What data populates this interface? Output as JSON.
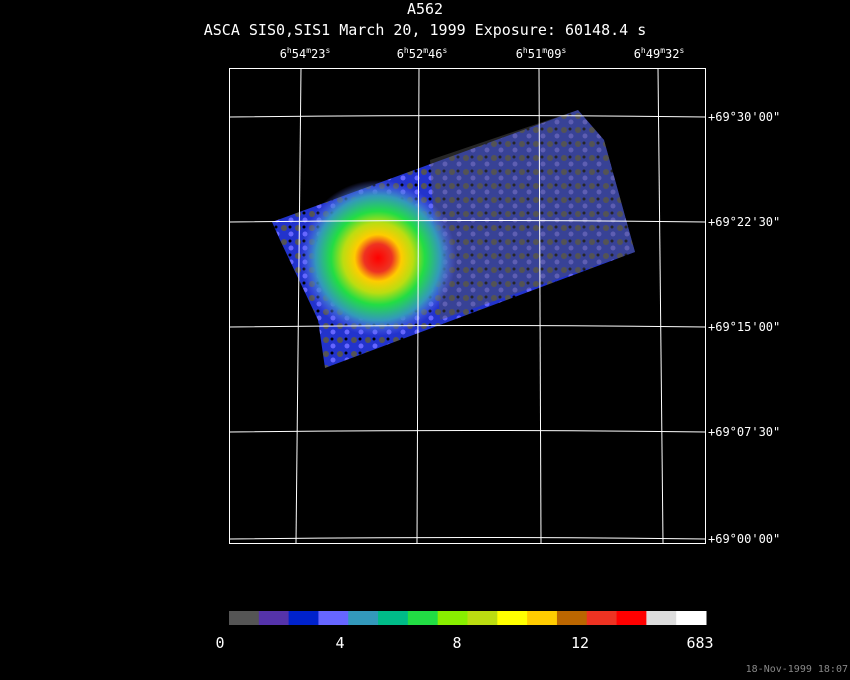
{
  "header": {
    "title": "A562",
    "subtitle": "ASCA SIS0,SIS1 March 20, 1999 Exposure: 60148.4 s"
  },
  "ra_labels": [
    [
      "6",
      "h",
      "54",
      "m",
      "23",
      "s"
    ],
    [
      "6",
      "h",
      "52",
      "m",
      "46",
      "s"
    ],
    [
      "6",
      "h",
      "51",
      "m",
      "09",
      "s"
    ],
    [
      "6",
      "h",
      "49",
      "m",
      "32",
      "s"
    ]
  ],
  "dec_labels": [
    "+69°30'00\"",
    "+69°22'30\"",
    "+69°15'00\"",
    "+69°07'30\"",
    "+69°00'00\""
  ],
  "colorbar": {
    "labels": [
      "0",
      "4",
      "8",
      "12",
      "683"
    ],
    "colors": [
      "#555555",
      "#5533aa",
      "#0022cc",
      "#6666ff",
      "#3399bb",
      "#00bb88",
      "#22dd44",
      "#88ee00",
      "#bbdd11",
      "#ffff00",
      "#ffcc00",
      "#bb6600",
      "#ee3322",
      "#ff0000",
      "#dddddd",
      "#ffffff"
    ]
  },
  "timestamp": "18-Nov-1999 18:07"
}
